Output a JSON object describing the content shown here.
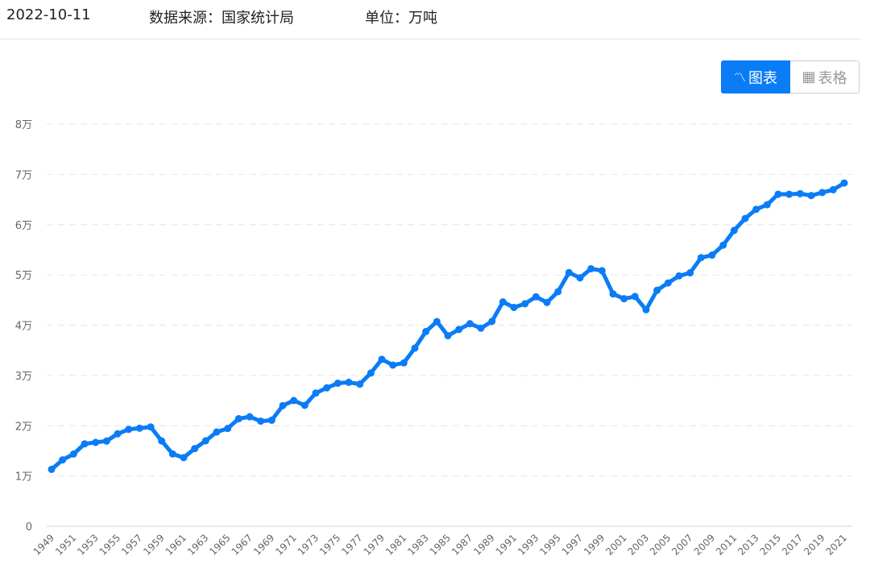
{
  "header": {
    "date": "2022-10-11",
    "source": "数据来源：国家统计局",
    "unit": "单位：万吨"
  },
  "toggle": {
    "chart_label": "图表",
    "table_label": "表格",
    "chart_icon": "line-chart-icon",
    "table_icon": "table-icon",
    "active": "chart"
  },
  "colors": {
    "line": "#0a7cf5",
    "grid": "#e6e6e6"
  },
  "chart_data": {
    "type": "line",
    "title": "",
    "xlabel": "",
    "ylabel": "万吨",
    "ylim": [
      0,
      80000
    ],
    "yticks": [
      {
        "v": 0,
        "label": "0"
      },
      {
        "v": 10000,
        "label": "1万"
      },
      {
        "v": 20000,
        "label": "2万"
      },
      {
        "v": 30000,
        "label": "3万"
      },
      {
        "v": 40000,
        "label": "4万"
      },
      {
        "v": 50000,
        "label": "5万"
      },
      {
        "v": 60000,
        "label": "6万"
      },
      {
        "v": 70000,
        "label": "7万"
      },
      {
        "v": 80000,
        "label": "8万"
      }
    ],
    "grid": true,
    "x": [
      1949,
      1950,
      1951,
      1952,
      1953,
      1954,
      1955,
      1956,
      1957,
      1958,
      1959,
      1960,
      1961,
      1962,
      1963,
      1964,
      1965,
      1966,
      1967,
      1968,
      1969,
      1970,
      1971,
      1972,
      1973,
      1974,
      1975,
      1976,
      1977,
      1978,
      1979,
      1980,
      1981,
      1982,
      1983,
      1984,
      1985,
      1986,
      1987,
      1988,
      1989,
      1990,
      1991,
      1992,
      1993,
      1994,
      1995,
      1996,
      1997,
      1998,
      1999,
      2000,
      2001,
      2002,
      2003,
      2004,
      2005,
      2006,
      2007,
      2008,
      2009,
      2010,
      2011,
      2012,
      2013,
      2014,
      2015,
      2016,
      2017,
      2018,
      2019,
      2020,
      2021
    ],
    "values": [
      11318,
      13213,
      14369,
      16392,
      16683,
      16952,
      18394,
      19275,
      19505,
      19765,
      16968,
      14385,
      13650,
      15441,
      17000,
      18750,
      19453,
      21400,
      21782,
      20906,
      21097,
      23996,
      25014,
      24048,
      26494,
      27527,
      28452,
      28631,
      28273,
      30477,
      33212,
      32056,
      32502,
      35450,
      38728,
      40731,
      37911,
      39151,
      40298,
      39408,
      40755,
      44624,
      43529,
      44266,
      45649,
      44510,
      46662,
      50454,
      49417,
      51230,
      50839,
      46218,
      45264,
      45706,
      43070,
      46947,
      48402,
      49804,
      50414,
      53434,
      53941,
      55911,
      58849,
      61223,
      63048,
      63965,
      66060,
      66044,
      66161,
      65789,
      66384,
      66949,
      68285
    ]
  }
}
